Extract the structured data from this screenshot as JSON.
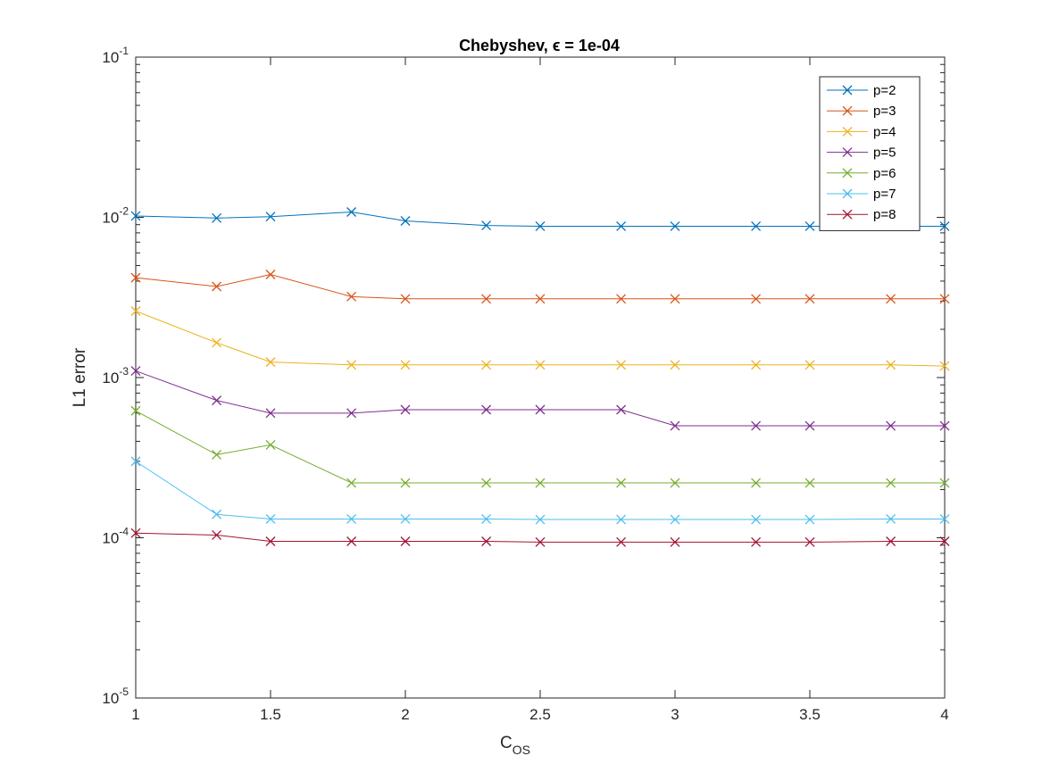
{
  "chart_data": {
    "type": "line",
    "title": "Chebyshev, ϵ = 1e-04",
    "xlabel": "C",
    "xlabel_sub": "OS",
    "ylabel": "L1 error",
    "xlim": [
      1,
      4
    ],
    "ylim": [
      1e-05,
      0.1
    ],
    "yscale": "log",
    "x_ticks": [
      "1",
      "1.5",
      "2",
      "2.5",
      "3",
      "3.5",
      "4"
    ],
    "x_tick_values": [
      1,
      1.5,
      2,
      2.5,
      3,
      3.5,
      4
    ],
    "y_ticks": [
      {
        "base": "10",
        "exp": "-5",
        "value": 1e-05
      },
      {
        "base": "10",
        "exp": "-4",
        "value": 0.0001
      },
      {
        "base": "10",
        "exp": "-3",
        "value": 0.001
      },
      {
        "base": "10",
        "exp": "-2",
        "value": 0.01
      },
      {
        "base": "10",
        "exp": "-1",
        "value": 0.1
      }
    ],
    "grid": false,
    "legend_position": "top-right",
    "marker": "x",
    "x": [
      1,
      1.3,
      1.5,
      1.8,
      2,
      2.3,
      2.5,
      2.8,
      3,
      3.3,
      3.5,
      3.8,
      4
    ],
    "series": [
      {
        "name": "p=2",
        "color": "#0072BD",
        "values": [
          0.0102,
          0.0099,
          0.0101,
          0.0108,
          0.0095,
          0.0089,
          0.0088,
          0.0088,
          0.0088,
          0.0088,
          0.0088,
          0.0088,
          0.0088
        ]
      },
      {
        "name": "p=3",
        "color": "#D95319",
        "values": [
          0.0042,
          0.0037,
          0.0044,
          0.0032,
          0.0031,
          0.0031,
          0.0031,
          0.0031,
          0.0031,
          0.0031,
          0.0031,
          0.0031,
          0.0031
        ]
      },
      {
        "name": "p=4",
        "color": "#EDB120",
        "values": [
          0.0026,
          0.00165,
          0.00125,
          0.0012,
          0.0012,
          0.0012,
          0.0012,
          0.0012,
          0.0012,
          0.0012,
          0.0012,
          0.0012,
          0.00118
        ]
      },
      {
        "name": "p=5",
        "color": "#7E2F8E",
        "values": [
          0.0011,
          0.00072,
          0.0006,
          0.0006,
          0.00063,
          0.00063,
          0.00063,
          0.00063,
          0.0005,
          0.0005,
          0.0005,
          0.0005,
          0.0005
        ]
      },
      {
        "name": "p=6",
        "color": "#77AC30",
        "values": [
          0.00062,
          0.00033,
          0.00038,
          0.00022,
          0.00022,
          0.00022,
          0.00022,
          0.00022,
          0.00022,
          0.00022,
          0.00022,
          0.00022,
          0.00022
        ]
      },
      {
        "name": "p=7",
        "color": "#4DBEEE",
        "values": [
          0.0003,
          0.00014,
          0.000131,
          0.000131,
          0.000131,
          0.000131,
          0.00013,
          0.00013,
          0.00013,
          0.00013,
          0.00013,
          0.000131,
          0.000131
        ]
      },
      {
        "name": "p=8",
        "color": "#A2142F",
        "values": [
          0.000107,
          0.000104,
          9.5e-05,
          9.5e-05,
          9.5e-05,
          9.5e-05,
          9.4e-05,
          9.4e-05,
          9.4e-05,
          9.4e-05,
          9.4e-05,
          9.5e-05,
          9.5e-05
        ]
      }
    ]
  }
}
